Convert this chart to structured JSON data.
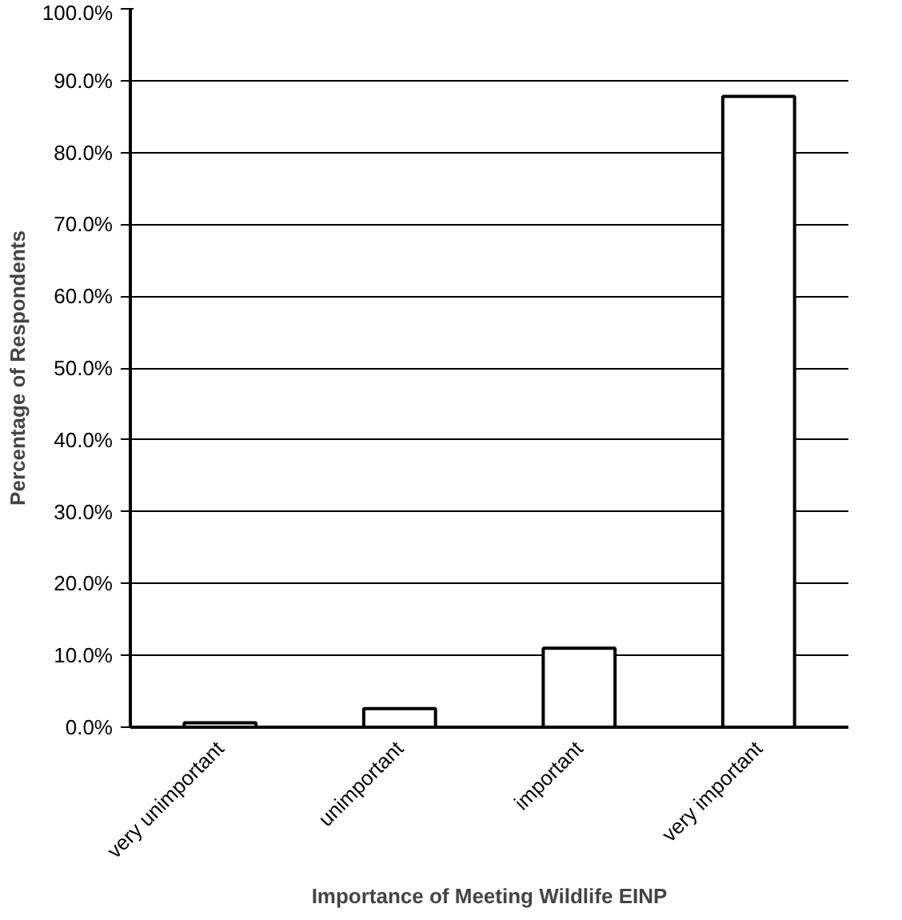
{
  "chart_data": {
    "type": "bar",
    "xlabel": "Importance of Meeting Wildlife EINP",
    "ylabel": "Percentage of Respondents",
    "categories": [
      "very unimportant",
      "unimportant",
      "important",
      "very important"
    ],
    "values": [
      0.6,
      2.6,
      11.0,
      87.8
    ],
    "color": "#ffffff",
    "ylim": [
      0,
      100
    ],
    "yticks": [
      {
        "value": 0,
        "label": "0.0%"
      },
      {
        "value": 10,
        "label": "10.0%"
      },
      {
        "value": 20,
        "label": "20.0%"
      },
      {
        "value": 30,
        "label": "30.0%"
      },
      {
        "value": 40,
        "label": "40.0%"
      },
      {
        "value": 50,
        "label": "50.0%"
      },
      {
        "value": 60,
        "label": "60.0%"
      },
      {
        "value": 70,
        "label": "70.0%"
      },
      {
        "value": 80,
        "label": "80.0%"
      },
      {
        "value": 90,
        "label": "90.0%"
      },
      {
        "value": 100,
        "label": "100.0%"
      }
    ],
    "grid": "y"
  }
}
